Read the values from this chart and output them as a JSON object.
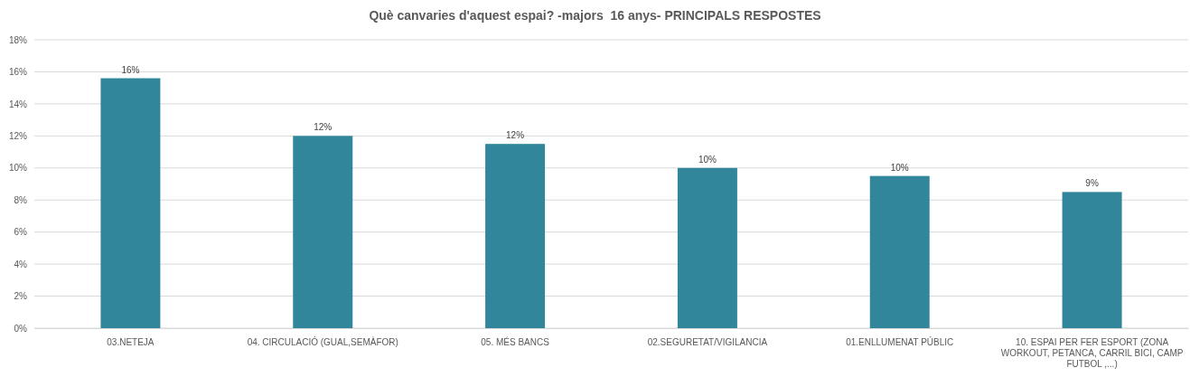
{
  "chart_data": {
    "type": "bar",
    "title": "Què canvaries d'aquest espai? -majors  16 anys- PRINCIPALS RESPOSTES",
    "categories": [
      "03.NETEJA",
      "04. CIRCULACIÓ (GUAL,SEMÀFOR)",
      "05. MÉS BANCS",
      "02.SEGURETAT/VIGILANCIA",
      "01.ENLLUMENAT PÚBLIC",
      "10. ESPAI PER FER ESPORT (ZONA WORKOUT, PETANCA, CARRIL BICI, CAMP FUTBOL ,...)"
    ],
    "values": [
      15.6,
      12.0,
      11.5,
      10.0,
      9.5,
      8.5
    ],
    "value_labels": [
      "16%",
      "12%",
      "12%",
      "10%",
      "10%",
      "9%"
    ],
    "color": "#31869b",
    "ylim": [
      0,
      18
    ],
    "yticks": [
      {
        "value": 0,
        "label": "0%"
      },
      {
        "value": 2,
        "label": "2%"
      },
      {
        "value": 4,
        "label": "4%"
      },
      {
        "value": 6,
        "label": "6%"
      },
      {
        "value": 8,
        "label": "8%"
      },
      {
        "value": 10,
        "label": "10%"
      },
      {
        "value": 12,
        "label": "12%"
      },
      {
        "value": 14,
        "label": "14%"
      },
      {
        "value": 16,
        "label": "16%"
      },
      {
        "value": 18,
        "label": "18%"
      }
    ],
    "grid": "y"
  }
}
